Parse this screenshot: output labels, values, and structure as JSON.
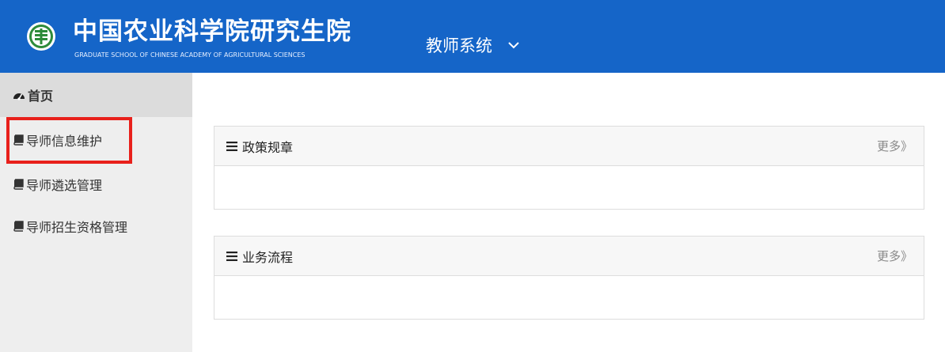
{
  "header": {
    "logo_icon": "university-seal-icon",
    "title_cn": "中国农业科学院研究生院",
    "title_en": "GRADUATE SCHOOL OF CHINESE ACADEMY OF AGRICULTURAL SCIENCES",
    "system_label": "教师系统",
    "system_chevron_icon": "chevron-down-icon",
    "bg_color": "#1565c8"
  },
  "sidebar": {
    "items": [
      {
        "label": "首页",
        "icon": "dashboard-icon",
        "active": true
      },
      {
        "label": "导师信息维护",
        "icon": "book-icon",
        "highlighted": true
      },
      {
        "label": "导师遴选管理",
        "icon": "book-icon"
      },
      {
        "label": "导师招生资格管理",
        "icon": "book-icon"
      }
    ],
    "highlight_color": "#e8201b"
  },
  "panels": [
    {
      "title": "政策规章",
      "icon": "menu-icon",
      "more": "更多》"
    },
    {
      "title": "业务流程",
      "icon": "menu-icon",
      "more": "更多》"
    }
  ]
}
